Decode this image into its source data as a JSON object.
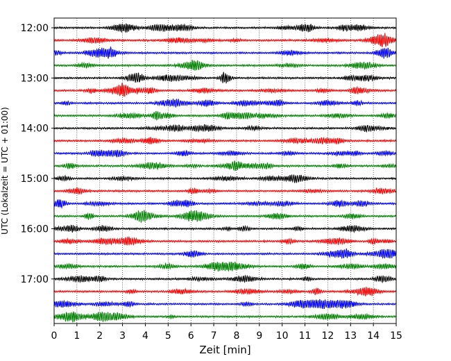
{
  "chart_data": {
    "type": "line",
    "subtype": "helicorder",
    "xlabel": "Zeit  [min]",
    "ylabel": "UTC (Lokalzeit = UTC + 01:00)",
    "xlim": [
      0,
      15
    ],
    "x_ticks": [
      0,
      1,
      2,
      3,
      4,
      5,
      6,
      7,
      8,
      9,
      10,
      11,
      12,
      13,
      14,
      15
    ],
    "x_tick_labels": [
      "0",
      "1",
      "2",
      "3",
      "4",
      "5",
      "6",
      "7",
      "8",
      "9",
      "10",
      "11",
      "12",
      "13",
      "14",
      "15"
    ],
    "y_ticks": [
      "12:00",
      "13:00",
      "14:00",
      "15:00",
      "16:00",
      "17:00"
    ],
    "trace_interval_minutes": 15,
    "traces_per_hour": 4,
    "trace_colors": [
      "#000000",
      "#ff0000",
      "#0000ff",
      "#008000"
    ],
    "trace_start_times": [
      "12:00",
      "12:15",
      "12:30",
      "12:45",
      "13:00",
      "13:15",
      "13:30",
      "13:45",
      "14:00",
      "14:15",
      "14:30",
      "14:45",
      "15:00",
      "15:15",
      "15:30",
      "15:45",
      "16:00",
      "16:15",
      "16:30",
      "16:45",
      "17:00",
      "17:15",
      "17:30",
      "17:45"
    ],
    "vertical_grid": "dotted",
    "grid": true
  }
}
